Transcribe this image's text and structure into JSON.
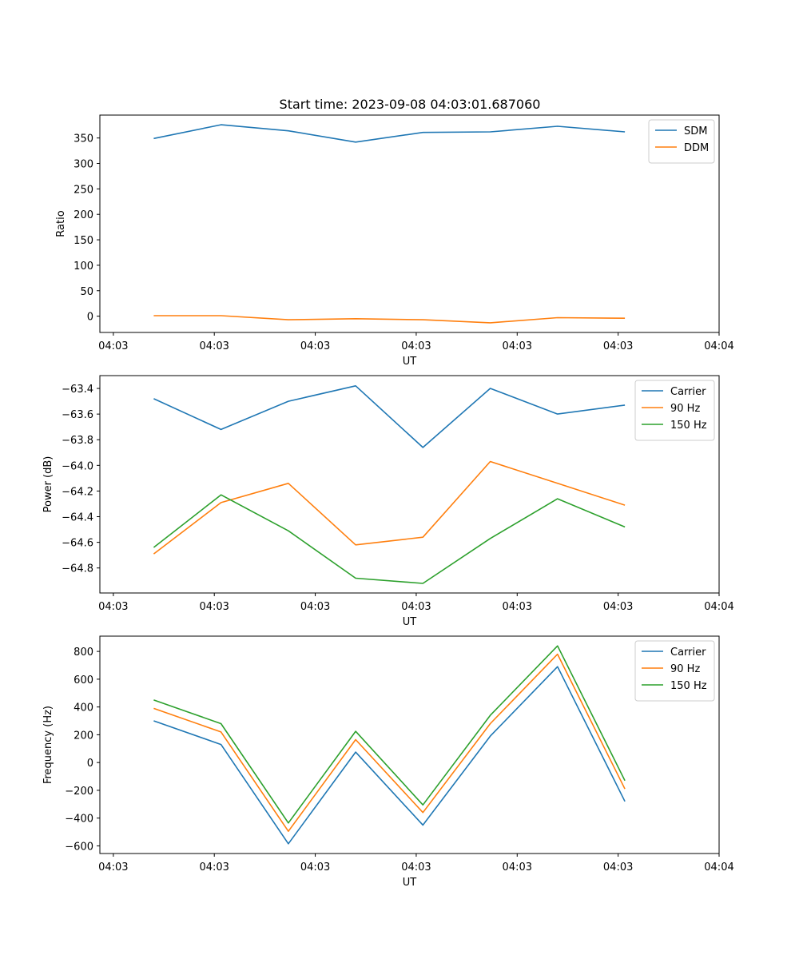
{
  "figure_title": "Start time: 2023-09-08 04:03:01.687060",
  "colors": {
    "blue": "#1f77b4",
    "orange": "#ff7f0e",
    "green": "#2ca02c"
  },
  "chart_data": [
    {
      "type": "line",
      "title": "",
      "xlabel": "UT",
      "ylabel": "Ratio",
      "x": [
        1,
        2,
        3,
        4,
        5,
        6,
        7,
        8
      ],
      "xlim": [
        0.2,
        9.4
      ],
      "xticks": [
        0.4,
        1.9,
        3.4,
        4.9,
        6.4,
        7.9,
        9.4
      ],
      "xticklabels": [
        "04:03",
        "04:03",
        "04:03",
        "04:03",
        "04:03",
        "04:03",
        "04:04"
      ],
      "ylim": [
        -32,
        395
      ],
      "yticks": [
        0,
        50,
        100,
        150,
        200,
        250,
        300,
        350
      ],
      "legend": "top-right",
      "series": [
        {
          "name": "SDM",
          "color": "#1f77b4",
          "values": [
            349,
            376,
            364,
            342,
            361,
            362,
            373,
            362
          ]
        },
        {
          "name": "DDM",
          "color": "#ff7f0e",
          "values": [
            1,
            1,
            -7,
            -5,
            -7,
            -13,
            -3,
            -4
          ]
        }
      ]
    },
    {
      "type": "line",
      "title": "",
      "xlabel": "UT",
      "ylabel": "Power (dB)",
      "x": [
        1,
        2,
        3,
        4,
        5,
        6,
        7,
        8
      ],
      "xlim": [
        0.2,
        9.4
      ],
      "xticks": [
        0.4,
        1.9,
        3.4,
        4.9,
        6.4,
        7.9,
        9.4
      ],
      "xticklabels": [
        "04:03",
        "04:03",
        "04:03",
        "04:03",
        "04:03",
        "04:03",
        "04:04"
      ],
      "ylim": [
        -64.995,
        -63.3
      ],
      "yticks": [
        -63.4,
        -63.6,
        -63.8,
        -64.0,
        -64.2,
        -64.4,
        -64.6,
        -64.8
      ],
      "yticklabels": [
        "−63.4",
        "−63.6",
        "−63.8",
        "−64.0",
        "−64.2",
        "−64.4",
        "−64.6",
        "−64.8"
      ],
      "legend": "top-right",
      "series": [
        {
          "name": "Carrier",
          "color": "#1f77b4",
          "values": [
            -63.48,
            -63.72,
            -63.5,
            -63.38,
            -63.86,
            -63.4,
            -63.6,
            -63.53
          ]
        },
        {
          "name": "90 Hz",
          "color": "#ff7f0e",
          "values": [
            -64.69,
            -64.29,
            -64.14,
            -64.62,
            -64.56,
            -63.97,
            -64.14,
            -64.31
          ]
        },
        {
          "name": "150 Hz",
          "color": "#2ca02c",
          "values": [
            -64.64,
            -64.23,
            -64.51,
            -64.88,
            -64.92,
            -64.57,
            -64.26,
            -64.48
          ]
        }
      ]
    },
    {
      "type": "line",
      "title": "",
      "xlabel": "UT",
      "ylabel": "Frequency (Hz)",
      "x": [
        1,
        2,
        3,
        4,
        5,
        6,
        7,
        8
      ],
      "xlim": [
        0.2,
        9.4
      ],
      "xticks": [
        0.4,
        1.9,
        3.4,
        4.9,
        6.4,
        7.9,
        9.4
      ],
      "xticklabels": [
        "04:03",
        "04:03",
        "04:03",
        "04:03",
        "04:03",
        "04:03",
        "04:04"
      ],
      "ylim": [
        -655,
        910
      ],
      "yticks": [
        800,
        600,
        400,
        200,
        0,
        -200,
        -400,
        -600
      ],
      "yticklabels": [
        "800",
        "600",
        "400",
        "200",
        "0",
        "−200",
        "−400",
        "−600"
      ],
      "legend": "top-right",
      "series": [
        {
          "name": "Carrier",
          "color": "#1f77b4",
          "values": [
            300,
            130,
            -585,
            75,
            -450,
            190,
            690,
            -280
          ]
        },
        {
          "name": "90 Hz",
          "color": "#ff7f0e",
          "values": [
            390,
            220,
            -495,
            165,
            -360,
            280,
            780,
            -190
          ]
        },
        {
          "name": "150 Hz",
          "color": "#2ca02c",
          "values": [
            450,
            280,
            -435,
            225,
            -305,
            340,
            840,
            -130
          ]
        }
      ]
    }
  ]
}
